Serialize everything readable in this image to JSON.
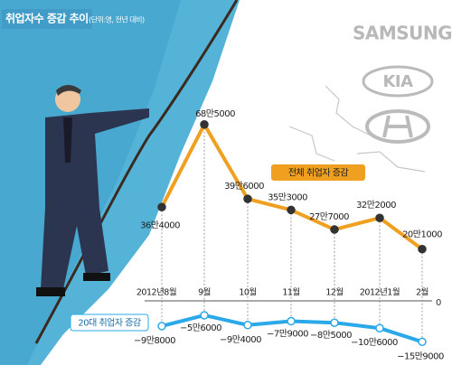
{
  "chart_data": {
    "type": "line",
    "title": "취업자수 증감 추이",
    "subtitle": "(단위:명, 전년 대비)",
    "logos": [
      "SAMSUNG",
      "KIA"
    ],
    "categories": [
      "2012년8월",
      "9월",
      "10월",
      "11월",
      "12월",
      "2012년1월",
      "2월"
    ],
    "series": [
      {
        "name": "전체 취업자 증감",
        "color": "#f0a020",
        "values": [
          364000,
          685000,
          396000,
          353000,
          277000,
          322000,
          201000
        ],
        "value_labels": [
          "36만4000",
          "68만5000",
          "39만6000",
          "35만3000",
          "27만7000",
          "32만2000",
          "20만1000"
        ]
      },
      {
        "name": "20대 취업자 증감",
        "color": "#2aa8e8",
        "values": [
          -98000,
          -56000,
          -94000,
          -79000,
          -85000,
          -106000,
          -159000
        ],
        "value_labels": [
          "−9만8000",
          "−5만6000",
          "−9만4000",
          "−7만9000",
          "−8만5000",
          "−10만6000",
          "−15만9000"
        ]
      }
    ],
    "ylim": [
      -200000,
      700000
    ],
    "yticks": [
      0
    ]
  }
}
